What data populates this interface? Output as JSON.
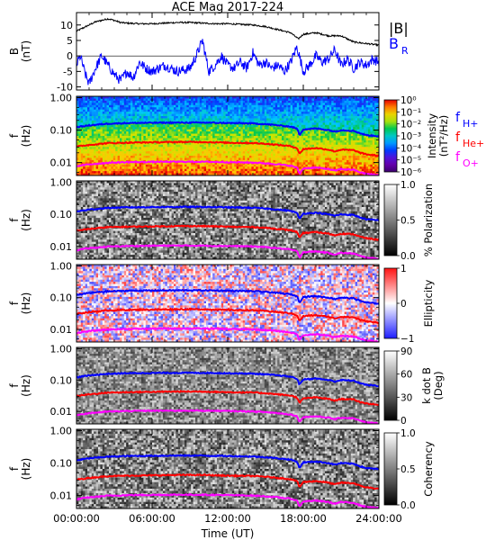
{
  "chart_data": {
    "type": "line",
    "title": "ACE Mag 2017-224",
    "xlabel": "Time (UT)",
    "x_ticks": [
      "00:00:00",
      "06:00:00",
      "12:00:00",
      "18:00:00",
      "24:00:00"
    ],
    "x_tick_hours": [
      0,
      6,
      12,
      18,
      24
    ],
    "xlim_hours": [
      0,
      24
    ],
    "panels": [
      {
        "id": "bfield",
        "type": "line",
        "ylabel": "B\n(nT)",
        "ylim": [
          -11,
          14
        ],
        "y_ticks": [
          10,
          5,
          0,
          -5,
          -10
        ],
        "y_tick_labels": [
          "10",
          "5",
          "0",
          "-5",
          "-10"
        ],
        "legend": [
          "|B|",
          "B_R"
        ],
        "series": [
          {
            "name": "|B|",
            "color": "#000000",
            "x": [
              0,
              0.5,
              1,
              1.5,
              2,
              2.5,
              3,
              3.5,
              4,
              5,
              6,
              7,
              8,
              9,
              10,
              11,
              12,
              13,
              14,
              15,
              16,
              17,
              17.6,
              18,
              19,
              20,
              21,
              22,
              23,
              24
            ],
            "values": [
              8.0,
              9.0,
              10.0,
              11.0,
              11.5,
              12.0,
              11.5,
              10.8,
              10.6,
              10.4,
              10.4,
              10.6,
              10.8,
              10.8,
              10.6,
              10.4,
              10.4,
              10.2,
              10.0,
              9.5,
              8.5,
              7.5,
              5.5,
              7.0,
              7.5,
              6.5,
              6.5,
              4.5,
              4.0,
              3.5
            ]
          },
          {
            "name": "B_R",
            "color": "#0000ff",
            "x": [
              0,
              0.3,
              0.7,
              1,
              1.5,
              2,
              2.5,
              3,
              3.5,
              4,
              4.5,
              5,
              5.5,
              6,
              7,
              8,
              9,
              9.5,
              10,
              10.5,
              11,
              11.5,
              12,
              12.5,
              13,
              13.5,
              14,
              14.5,
              15,
              15.5,
              16,
              16.5,
              17,
              17.5,
              18,
              18.5,
              19,
              19.5,
              20,
              20.5,
              21,
              21.5,
              22,
              22.5,
              23,
              23.5,
              24
            ],
            "values": [
              -3,
              0,
              -6,
              -9,
              -4,
              0,
              -3,
              -6,
              -8,
              -5,
              -7,
              -2,
              -4,
              -5,
              -3,
              -5,
              -4,
              0,
              5,
              -5,
              -3,
              0,
              -3,
              -4,
              -2,
              -4,
              1,
              -3,
              -2,
              -4,
              -3,
              -5,
              -2,
              3,
              -5,
              -3,
              0,
              -2,
              -1,
              2,
              -3,
              -1,
              -4,
              -2,
              -3,
              -1,
              -2
            ]
          }
        ]
      },
      {
        "id": "intensity",
        "type": "heatmap",
        "ylabel": "f\n(Hz)",
        "ylim": [
          0.004,
          1.1
        ],
        "y_scale": "log",
        "y_tick_labels": [
          "1.00",
          "0.10",
          "0.01"
        ],
        "colorbar": {
          "label": "Intensity\n(nT²/Hz)",
          "tick_labels": [
            "10⁰",
            "10⁻¹",
            "10⁻²",
            "10⁻³",
            "10⁻⁴",
            "10⁻⁵",
            "10⁻⁶"
          ],
          "colormap": "rainbow"
        },
        "side_legend": [
          "f_H+",
          "f_He+",
          "f_O+"
        ]
      },
      {
        "id": "polarization",
        "type": "heatmap",
        "ylabel": "f\n(Hz)",
        "ylim": [
          0.004,
          1.1
        ],
        "y_scale": "log",
        "y_tick_labels": [
          "1.00",
          "0.10",
          "0.01"
        ],
        "colorbar": {
          "label": "% Polarization",
          "tick_labels": [
            "1.0",
            "0.5",
            "0.0"
          ],
          "colormap": "gray"
        }
      },
      {
        "id": "ellipticity",
        "type": "heatmap",
        "ylabel": "f\n(Hz)",
        "ylim": [
          0.004,
          1.1
        ],
        "y_scale": "log",
        "y_tick_labels": [
          "1.00",
          "0.10",
          "0.01"
        ],
        "colorbar": {
          "label": "Ellipticity",
          "tick_labels": [
            "1",
            "0",
            "−1"
          ],
          "colormap": "bwr"
        }
      },
      {
        "id": "kdotb",
        "type": "heatmap",
        "ylabel": "f\n(Hz)",
        "ylim": [
          0.004,
          1.1
        ],
        "y_scale": "log",
        "y_tick_labels": [
          "1.00",
          "0.10",
          "0.01"
        ],
        "colorbar": {
          "label": "k dot B\n(Deg)",
          "tick_labels": [
            "90",
            "60",
            "30",
            "0"
          ],
          "colormap": "gray"
        }
      },
      {
        "id": "coherency",
        "type": "heatmap",
        "ylabel": "f\n(Hz)",
        "ylim": [
          0.004,
          1.1
        ],
        "y_scale": "log",
        "y_tick_labels": [
          "1.00",
          "0.10",
          "0.01"
        ],
        "colorbar": {
          "label": "Coherency",
          "tick_labels": [
            "1.0",
            "0.5",
            "0.0"
          ],
          "colormap": "gray"
        }
      }
    ],
    "gyrofrequency_lines": {
      "x": [
        0,
        1,
        2,
        2.5,
        3,
        4,
        6,
        8,
        10,
        12,
        14,
        15,
        16,
        17,
        17.5,
        17.7,
        18,
        19,
        20,
        20.5,
        21,
        22,
        22.5,
        23,
        24
      ],
      "series": [
        {
          "name": "f_H+",
          "color": "#0000ff",
          "values": [
            0.122,
            0.14,
            0.152,
            0.158,
            0.16,
            0.165,
            0.168,
            0.17,
            0.17,
            0.165,
            0.16,
            0.152,
            0.14,
            0.128,
            0.11,
            0.07,
            0.105,
            0.112,
            0.1,
            0.09,
            0.1,
            0.095,
            0.08,
            0.07,
            0.065
          ]
        },
        {
          "name": "f_He+",
          "color": "#ff0000",
          "values": [
            0.031,
            0.035,
            0.038,
            0.04,
            0.04,
            0.041,
            0.042,
            0.043,
            0.043,
            0.041,
            0.04,
            0.038,
            0.035,
            0.032,
            0.028,
            0.018,
            0.026,
            0.028,
            0.025,
            0.022,
            0.025,
            0.024,
            0.02,
            0.018,
            0.016
          ]
        },
        {
          "name": "f_O+",
          "color": "#ff00ff",
          "values": [
            0.0077,
            0.0088,
            0.0095,
            0.0099,
            0.01,
            0.0103,
            0.0105,
            0.0106,
            0.0106,
            0.0103,
            0.01,
            0.0095,
            0.0088,
            0.008,
            0.007,
            0.0045,
            0.0066,
            0.007,
            0.0063,
            0.0056,
            0.0063,
            0.006,
            0.005,
            0.0045,
            0.0041
          ]
        }
      ]
    }
  }
}
